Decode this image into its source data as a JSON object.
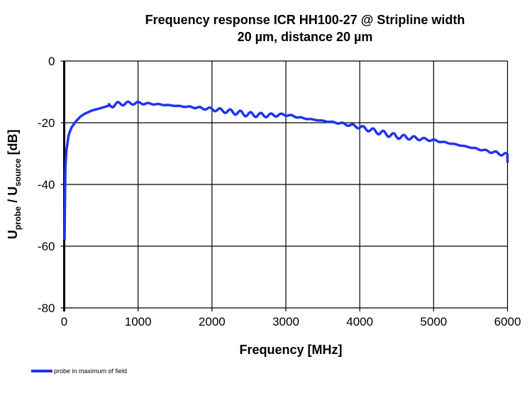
{
  "chart_data": {
    "type": "line",
    "title_line1": "Frequency response ICR HH100-27 @ Stripline  width",
    "title_line2": "20 µm, distance 20 µm",
    "xlabel": "Frequency [MHz]",
    "ylabel": {
      "u1": "U",
      "sub1": "probe",
      "mid": " / U",
      "sub2": "source",
      "end": " [dB]"
    },
    "xlim": [
      0,
      6000
    ],
    "ylim": [
      -80,
      0
    ],
    "xticks": [
      "0",
      "1000",
      "2000",
      "3000",
      "4000",
      "5000",
      "6000"
    ],
    "yticks": [
      "0",
      "-20",
      "-40",
      "-60",
      "-80"
    ],
    "grid": true,
    "legend_position": "bottom-left",
    "series": [
      {
        "name": "probe in maximum of field",
        "color": "#2233ee",
        "x": [
          5,
          15,
          30,
          60,
          100,
          160,
          220,
          285,
          380,
          475,
          600,
          770,
          1000,
          1250,
          1500,
          1750,
          2000,
          2250,
          2500,
          2750,
          3000,
          3250,
          3500,
          3750,
          4000,
          4250,
          4500,
          4750,
          5000,
          5250,
          5500,
          5750,
          6000
        ],
        "y": [
          -58,
          -35,
          -29,
          -24,
          -21.5,
          -19.5,
          -18,
          -17,
          -16,
          -15.4,
          -14.5,
          -13.8,
          -13.6,
          -14,
          -14.5,
          -15,
          -15.6,
          -16.4,
          -17.3,
          -17.6,
          -17.4,
          -18.6,
          -19.4,
          -20.2,
          -21.4,
          -23,
          -24.4,
          -25,
          -25.7,
          -26.8,
          -28,
          -29.3,
          -30.5
        ]
      }
    ]
  }
}
